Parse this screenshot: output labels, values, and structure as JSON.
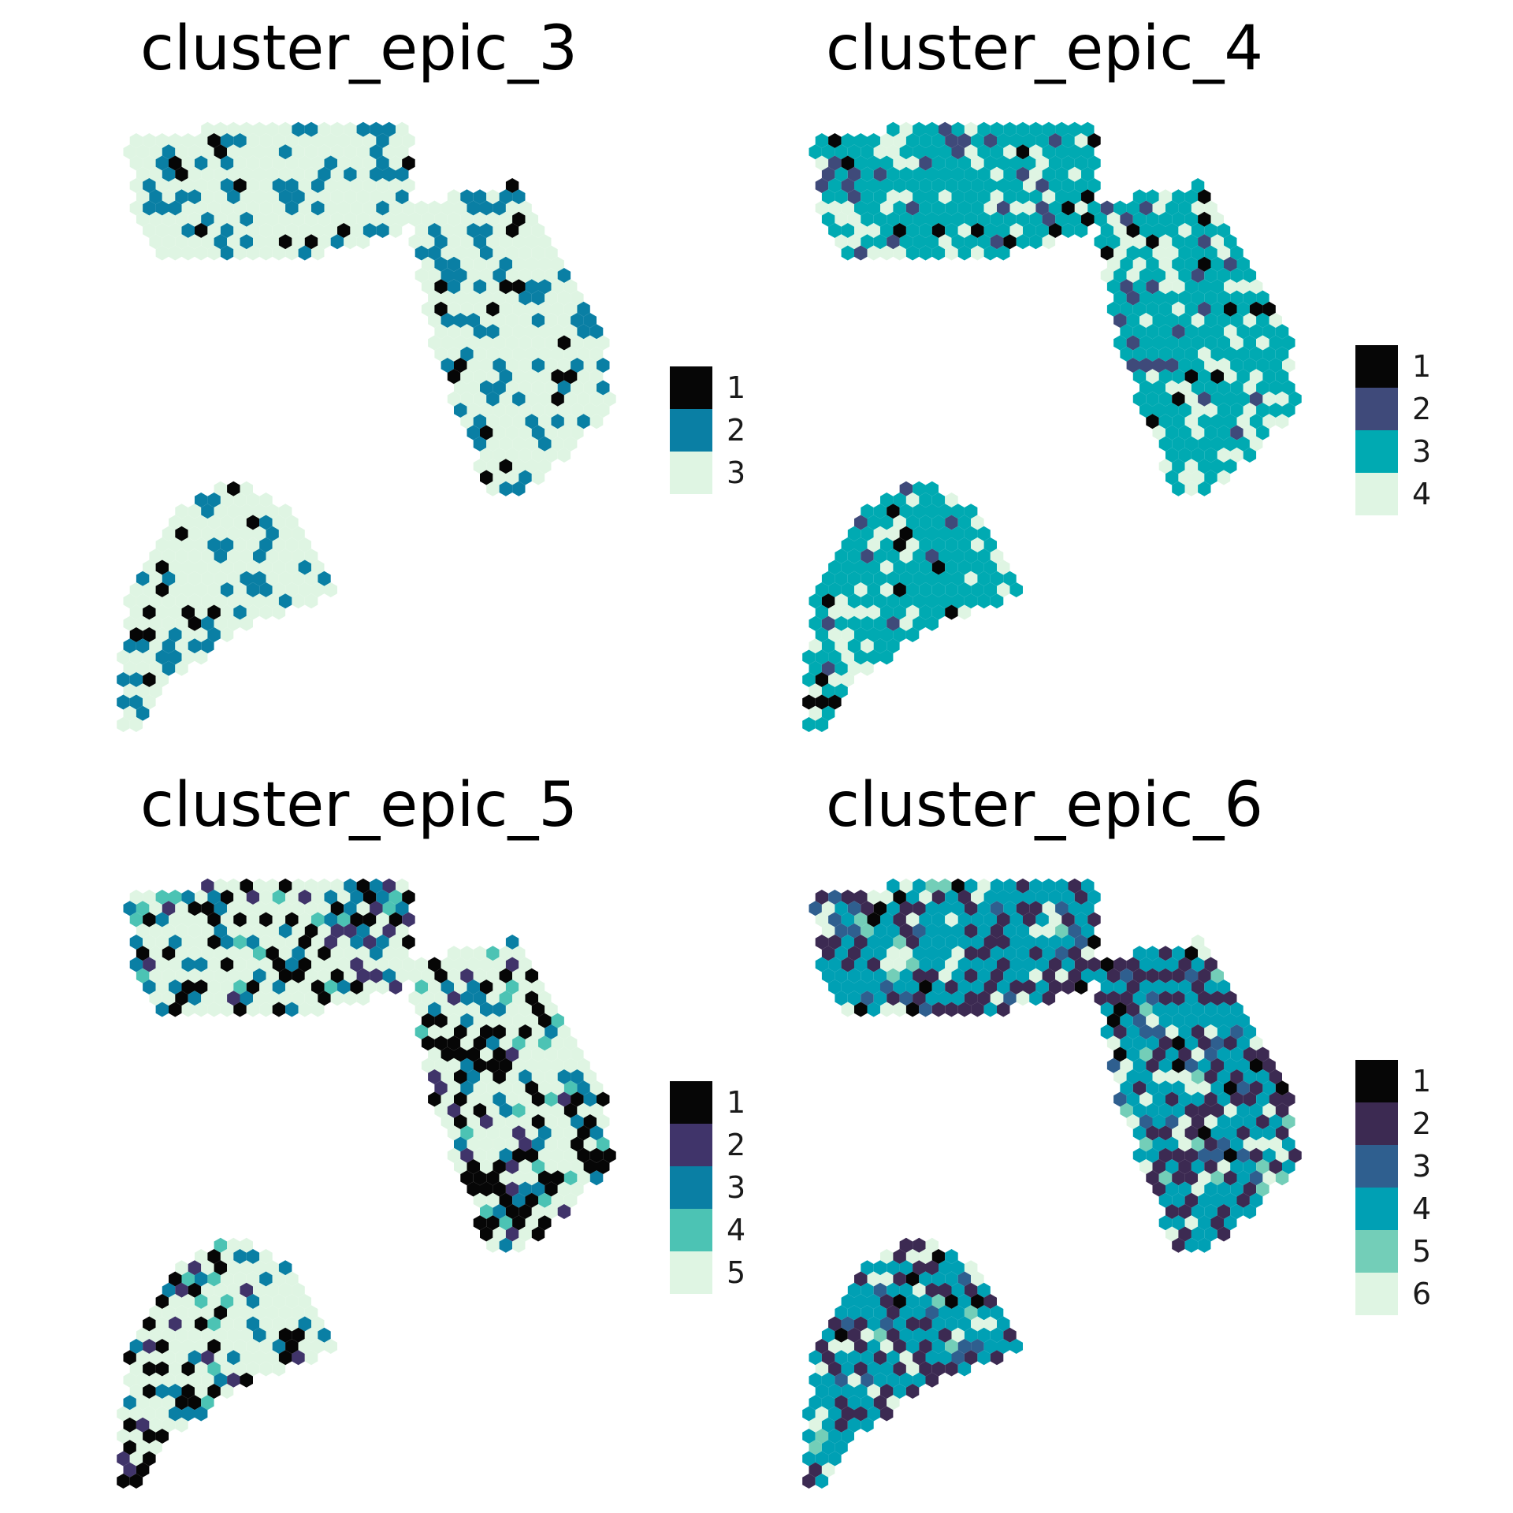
{
  "chart_data": [
    {
      "type": "spatial-hexbin",
      "title": "cluster_epic_3",
      "seed": 3,
      "legend": [
        {
          "label": "1",
          "color": "#060606"
        },
        {
          "label": "2",
          "color": "#0a7fa4"
        },
        {
          "label": "3",
          "color": "#dff5e3"
        }
      ],
      "weights": [
        0.07,
        0.22,
        0.71
      ],
      "background_label": "3"
    },
    {
      "type": "spatial-hexbin",
      "title": "cluster_epic_4",
      "seed": 4,
      "legend": [
        {
          "label": "1",
          "color": "#060606"
        },
        {
          "label": "2",
          "color": "#3f4a7a"
        },
        {
          "label": "3",
          "color": "#00aab2"
        },
        {
          "label": "4",
          "color": "#dff5e3"
        }
      ],
      "weights": [
        0.06,
        0.08,
        0.64,
        0.22
      ],
      "background_label": "3"
    },
    {
      "type": "spatial-hexbin",
      "title": "cluster_epic_5",
      "seed": 5,
      "legend": [
        {
          "label": "1",
          "color": "#060606"
        },
        {
          "label": "2",
          "color": "#40346a"
        },
        {
          "label": "3",
          "color": "#0a7fa4"
        },
        {
          "label": "4",
          "color": "#4cc3b4"
        },
        {
          "label": "5",
          "color": "#dff5e3"
        }
      ],
      "weights": [
        0.22,
        0.06,
        0.12,
        0.04,
        0.56
      ],
      "background_label": "5"
    },
    {
      "type": "spatial-hexbin",
      "title": "cluster_epic_6",
      "seed": 6,
      "legend": [
        {
          "label": "1",
          "color": "#060606"
        },
        {
          "label": "2",
          "color": "#3c2a52"
        },
        {
          "label": "3",
          "color": "#2f5f8f"
        },
        {
          "label": "4",
          "color": "#00a0b4"
        },
        {
          "label": "5",
          "color": "#73ceb8"
        },
        {
          "label": "6",
          "color": "#dff5e3"
        }
      ],
      "weights": [
        0.04,
        0.26,
        0.06,
        0.48,
        0.03,
        0.13
      ],
      "background_label": "4"
    }
  ]
}
